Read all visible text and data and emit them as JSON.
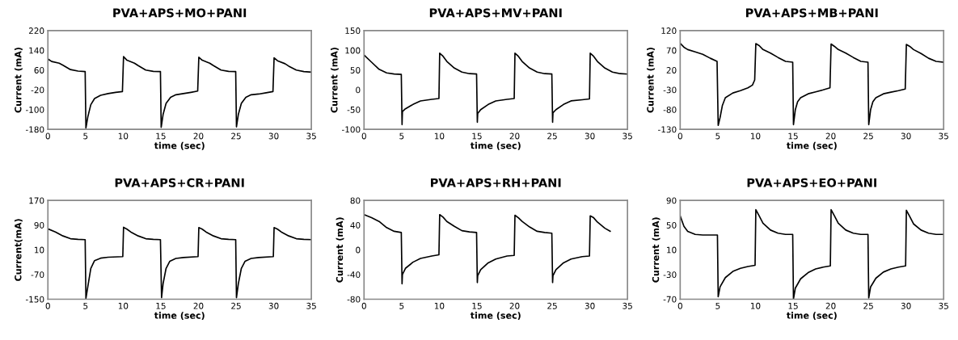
{
  "chart_data": [
    {
      "type": "line",
      "title": "PVA+APS+MO+PANI",
      "xlabel": "time (sec)",
      "ylabel": "Current (mA)",
      "xlim": [
        0,
        35
      ],
      "ylim": [
        -180,
        220
      ],
      "xticks": [
        0,
        5,
        10,
        15,
        20,
        25,
        30,
        35
      ],
      "yticks": [
        -180,
        -100,
        -20,
        60,
        140,
        220
      ],
      "series": [
        {
          "color": "#000000",
          "x": [
            0,
            0.5,
            1.5,
            2,
            3,
            4,
            4.95,
            5.05,
            5.3,
            5.7,
            6.2,
            7,
            8,
            9,
            9.9,
            10.05,
            10.5,
            11.5,
            12,
            13,
            14,
            14.95,
            15.05,
            15.3,
            15.7,
            16.3,
            17,
            18,
            19,
            19.9,
            20.05,
            20.5,
            21.5,
            22,
            23,
            24,
            24.95,
            25.05,
            25.3,
            25.7,
            26.3,
            27,
            28,
            29,
            29.9,
            30.05,
            30.5,
            31.5,
            32,
            33,
            34,
            35
          ],
          "values": [
            105,
            95,
            88,
            80,
            62,
            56,
            54,
            -175,
            -130,
            -80,
            -55,
            -42,
            -35,
            -30,
            -27,
            115,
            100,
            88,
            78,
            60,
            55,
            54,
            -172,
            -120,
            -75,
            -50,
            -40,
            -35,
            -30,
            -25,
            112,
            100,
            88,
            78,
            60,
            55,
            54,
            -170,
            -120,
            -75,
            -50,
            -40,
            -37,
            -32,
            -27,
            110,
            98,
            86,
            76,
            60,
            54,
            52
          ]
        }
      ]
    },
    {
      "type": "line",
      "title": "PVA+APS+MV+PANI",
      "xlabel": "time (sec)",
      "ylabel": "Current (mA)",
      "xlim": [
        0,
        35
      ],
      "ylim": [
        -100,
        150
      ],
      "xticks": [
        0,
        5,
        10,
        15,
        20,
        25,
        30,
        35
      ],
      "yticks": [
        -100,
        -50,
        0,
        50,
        100,
        150
      ],
      "series": [
        {
          "color": "#000000",
          "x": [
            0,
            1,
            2,
            3,
            4,
            4.95,
            5.05,
            5.1,
            5.5,
            6.5,
            7.5,
            9,
            9.95,
            10.05,
            10.5,
            11,
            12,
            13,
            14,
            14.95,
            15.05,
            15.1,
            15.5,
            16.5,
            17.5,
            19,
            19.95,
            20.05,
            20.5,
            21,
            22,
            23,
            24,
            24.95,
            25.05,
            25.1,
            25.5,
            26.5,
            27.5,
            29,
            29.95,
            30.05,
            30.5,
            31,
            32,
            33,
            34,
            35
          ],
          "values": [
            88,
            70,
            52,
            43,
            40,
            39,
            -88,
            -55,
            -48,
            -37,
            -28,
            -24,
            -22,
            93,
            85,
            72,
            55,
            45,
            41,
            40,
            -82,
            -60,
            -50,
            -37,
            -28,
            -24,
            -22,
            93,
            85,
            72,
            55,
            45,
            41,
            40,
            -82,
            -58,
            -50,
            -37,
            -28,
            -25,
            -23,
            93,
            85,
            72,
            55,
            45,
            41,
            40
          ]
        }
      ]
    },
    {
      "type": "line",
      "title": "PVA+APS+MB+PANI",
      "xlabel": "time (sec)",
      "ylabel": "Current (mA)",
      "xlim": [
        0,
        35
      ],
      "ylim": [
        -130,
        120
      ],
      "xticks": [
        0,
        5,
        10,
        15,
        20,
        25,
        30,
        35
      ],
      "yticks": [
        -130,
        -80,
        -30,
        20,
        70,
        120
      ],
      "series": [
        {
          "color": "#000000",
          "x": [
            0,
            0.5,
            1,
            2,
            3,
            4,
            4.9,
            5.05,
            5.3,
            5.6,
            6,
            7,
            8,
            9,
            9.6,
            9.9,
            10.05,
            10.5,
            11,
            12,
            13,
            14,
            14.95,
            15.05,
            15.3,
            15.6,
            16,
            17,
            18,
            19,
            19.9,
            20.05,
            20.5,
            21,
            22,
            23,
            24,
            24.95,
            25.05,
            25.3,
            25.6,
            26,
            27,
            28,
            29,
            29.9,
            30.05,
            30.5,
            31,
            32,
            33,
            34,
            35
          ],
          "values": [
            88,
            78,
            72,
            66,
            60,
            50,
            42,
            -120,
            -100,
            -70,
            -50,
            -38,
            -32,
            -25,
            -18,
            -5,
            87,
            82,
            72,
            63,
            52,
            42,
            40,
            -118,
            -80,
            -60,
            -50,
            -40,
            -35,
            -30,
            -25,
            86,
            80,
            72,
            63,
            52,
            42,
            40,
            -118,
            -80,
            -60,
            -50,
            -40,
            -36,
            -32,
            -28,
            85,
            80,
            72,
            62,
            50,
            42,
            40
          ]
        }
      ]
    },
    {
      "type": "line",
      "title": "PVA+APS+CR+PANI",
      "xlabel": "time (sec)",
      "ylabel": "Current(mA)",
      "xlim": [
        0,
        35
      ],
      "ylim": [
        -150,
        170
      ],
      "xticks": [
        0,
        5,
        10,
        15,
        20,
        25,
        30,
        35
      ],
      "yticks": [
        -150,
        -70,
        10,
        90,
        170
      ],
      "series": [
        {
          "color": "#000000",
          "x": [
            0,
            1,
            2,
            3,
            4,
            4.95,
            5.05,
            5.3,
            5.7,
            6.2,
            7,
            8,
            9.95,
            10.05,
            10.5,
            11,
            12,
            13,
            14,
            14.95,
            15.1,
            15.3,
            15.7,
            16.2,
            17,
            18,
            19.95,
            20.05,
            20.5,
            21,
            22,
            23,
            24,
            24.95,
            25.05,
            25.3,
            25.7,
            26.2,
            27,
            28,
            29.95,
            30.05,
            30.5,
            31,
            32,
            33,
            34,
            35
          ],
          "values": [
            78,
            68,
            55,
            46,
            44,
            43,
            -148,
            -110,
            -50,
            -25,
            -17,
            -14,
            -12,
            83,
            77,
            68,
            55,
            46,
            44,
            43,
            -145,
            -100,
            -50,
            -27,
            -18,
            -15,
            -12,
            82,
            77,
            68,
            55,
            46,
            44,
            43,
            -145,
            -100,
            -50,
            -27,
            -18,
            -15,
            -12,
            82,
            77,
            68,
            55,
            46,
            44,
            43
          ]
        }
      ]
    },
    {
      "type": "line",
      "title": "PVA+APS+RH+PANI",
      "xlabel": "time (sec)",
      "ylabel": "Current (mA)",
      "xlim": [
        0,
        35
      ],
      "ylim": [
        -80,
        80
      ],
      "xticks": [
        0,
        5,
        10,
        15,
        20,
        25,
        30,
        35
      ],
      "yticks": [
        -80,
        -40,
        0,
        40,
        80
      ],
      "series": [
        {
          "color": "#000000",
          "x": [
            0,
            1,
            2,
            3,
            4,
            4.95,
            5.05,
            5.1,
            5.5,
            6.5,
            7.5,
            9,
            9.95,
            10.05,
            10.5,
            11,
            12,
            13,
            14,
            14.95,
            15.05,
            15.1,
            15.5,
            16.5,
            17.5,
            19,
            19.95,
            20.05,
            20.5,
            21,
            22,
            23,
            24,
            24.95,
            25.05,
            25.1,
            25.5,
            26.5,
            27.5,
            29,
            29.95,
            30.05,
            30.5,
            31,
            32,
            32.7
          ],
          "values": [
            57,
            52,
            46,
            36,
            30,
            28,
            -55,
            -40,
            -30,
            -20,
            -14,
            -10,
            -8,
            57,
            53,
            46,
            38,
            31,
            29,
            28,
            -53,
            -42,
            -32,
            -21,
            -15,
            -10,
            -9,
            56,
            52,
            46,
            37,
            30,
            28,
            27,
            -53,
            -42,
            -32,
            -21,
            -15,
            -11,
            -10,
            55,
            52,
            45,
            35,
            30
          ]
        }
      ]
    },
    {
      "type": "line",
      "title": "PVA+APS+EO+PANI",
      "xlabel": "time (sec)",
      "ylabel": "Current (mA)",
      "xlim": [
        0,
        35
      ],
      "ylim": [
        -70,
        90
      ],
      "xticks": [
        0,
        5,
        10,
        15,
        20,
        25,
        30,
        35
      ],
      "yticks": [
        -70,
        -30,
        10,
        50,
        90
      ],
      "series": [
        {
          "color": "#000000",
          "x": [
            0,
            0.5,
            1,
            2,
            3,
            4.95,
            5.05,
            5.3,
            6,
            7,
            8,
            9,
            9.95,
            10.05,
            10.5,
            11,
            12,
            13,
            14,
            14.95,
            15.05,
            15.3,
            16,
            17,
            18,
            19,
            19.95,
            20.05,
            20.5,
            21,
            22,
            23,
            24,
            24.95,
            25.05,
            25.3,
            26,
            27,
            28,
            29,
            29.95,
            30.05,
            30.5,
            31,
            32,
            33,
            34,
            35
          ],
          "values": [
            65,
            48,
            40,
            35,
            34,
            34,
            -66,
            -50,
            -35,
            -25,
            -20,
            -17,
            -15,
            75,
            65,
            53,
            42,
            37,
            35,
            35,
            -70,
            -52,
            -37,
            -27,
            -21,
            -18,
            -16,
            75,
            65,
            53,
            42,
            37,
            35,
            35,
            -68,
            -50,
            -36,
            -26,
            -21,
            -18,
            -16,
            74,
            64,
            52,
            42,
            37,
            35,
            35
          ]
        }
      ]
    }
  ]
}
